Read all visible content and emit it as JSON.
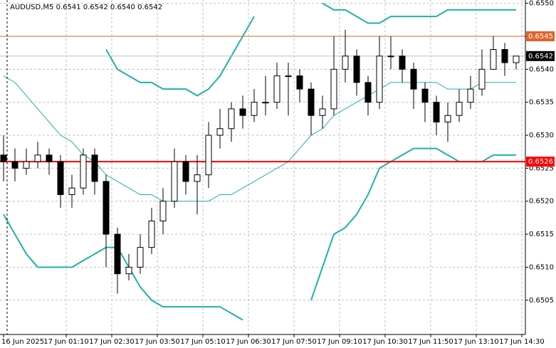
{
  "chart_data": {
    "type": "candlestick",
    "title": "AUDUSD,M5  0.6541 0.6542 0.6540 0.6542",
    "ylim": [
      0.64998,
      0.65505
    ],
    "yticks": [
      {
        "value": 0.6505,
        "label": "0.6505"
      },
      {
        "value": 0.651,
        "label": "0.6510"
      },
      {
        "value": 0.6515,
        "label": "0.6515"
      },
      {
        "value": 0.652,
        "label": "0.6520"
      },
      {
        "value": 0.6525,
        "label": "0.6525"
      },
      {
        "value": 0.653,
        "label": "0.6530"
      },
      {
        "value": 0.6535,
        "label": "0.6535"
      },
      {
        "value": 0.654,
        "label": "0.6540"
      },
      {
        "value": 0.6545,
        "label": "0.6545"
      },
      {
        "value": 0.655,
        "label": "0.6550"
      }
    ],
    "xticks": [
      {
        "value": 0,
        "label": "16 Jun 2025"
      },
      {
        "value": 5.5,
        "label": "17 Jun 01:10"
      },
      {
        "value": 9.5,
        "label": "17 Jun 02:30"
      },
      {
        "value": 13.5,
        "label": "17 Jun 03:50"
      },
      {
        "value": 17.5,
        "label": "17 Jun 05:10"
      },
      {
        "value": 21.5,
        "label": "17 Jun 06:30"
      },
      {
        "value": 25.5,
        "label": "17 Jun 07:50"
      },
      {
        "value": 29.5,
        "label": "17 Jun 09:10"
      },
      {
        "value": 33.5,
        "label": "17 Jun 10:30"
      },
      {
        "value": 37.5,
        "label": "17 Jun 11:50"
      },
      {
        "value": 41.5,
        "label": "17 Jun 13:10"
      },
      {
        "value": 45.5,
        "label": "17 Jun 14:30"
      }
    ],
    "grid": true,
    "open": [
      0.6527,
      0.6526,
      0.6525,
      0.6526,
      0.6527,
      0.6526,
      0.6521,
      0.6522,
      0.6527,
      0.6523,
      0.6515,
      0.6509,
      0.651,
      0.6513,
      0.6517,
      0.652,
      0.6526,
      0.6523,
      0.6524,
      0.653,
      0.6531,
      0.6534,
      0.6533,
      0.6535,
      0.6535,
      0.6539,
      0.6539,
      0.6537,
      0.6533,
      0.6534,
      0.654,
      0.6542,
      0.6538,
      0.6535,
      0.6542,
      0.6542,
      0.654,
      0.6537,
      0.6535,
      0.6532,
      0.6533,
      0.6535,
      0.6537,
      0.654,
      0.6543,
      0.6541
    ],
    "high": [
      0.653,
      0.6528,
      0.6528,
      0.6529,
      0.6528,
      0.6527,
      0.6524,
      0.6528,
      0.6528,
      0.6524,
      0.6516,
      0.6512,
      0.6515,
      0.6519,
      0.6522,
      0.6528,
      0.6527,
      0.6527,
      0.6532,
      0.6534,
      0.6535,
      0.6536,
      0.6537,
      0.6539,
      0.6541,
      0.6541,
      0.654,
      0.6538,
      0.6536,
      0.6545,
      0.6546,
      0.6543,
      0.6539,
      0.6545,
      0.6545,
      0.6543,
      0.6541,
      0.6538,
      0.6536,
      0.6535,
      0.6537,
      0.6539,
      0.6543,
      0.6545,
      0.6544,
      0.6542
    ],
    "low": [
      0.6523,
      0.6523,
      0.6524,
      0.6525,
      0.6524,
      0.6519,
      0.6519,
      0.6521,
      0.6521,
      0.651,
      0.6506,
      0.6508,
      0.6509,
      0.6512,
      0.6515,
      0.6519,
      0.6521,
      0.6518,
      0.6522,
      0.6528,
      0.6529,
      0.6531,
      0.6532,
      0.6533,
      0.6534,
      0.6533,
      0.6535,
      0.653,
      0.6531,
      0.6533,
      0.6538,
      0.6536,
      0.6533,
      0.6534,
      0.654,
      0.6538,
      0.6534,
      0.6532,
      0.653,
      0.6529,
      0.6532,
      0.6534,
      0.6536,
      0.654,
      0.6539,
      0.654
    ],
    "close": [
      0.6526,
      0.6525,
      0.6526,
      0.6527,
      0.6526,
      0.6521,
      0.6522,
      0.6527,
      0.6523,
      0.6515,
      0.6509,
      0.651,
      0.6513,
      0.6517,
      0.652,
      0.6526,
      0.6523,
      0.6524,
      0.653,
      0.6531,
      0.6534,
      0.6533,
      0.6535,
      0.6535,
      0.6539,
      0.6539,
      0.6537,
      0.6533,
      0.6534,
      0.654,
      0.6542,
      0.6538,
      0.6535,
      0.6542,
      0.6542,
      0.654,
      0.6537,
      0.6535,
      0.6532,
      0.6533,
      0.6535,
      0.6537,
      0.654,
      0.6543,
      0.6541,
      0.6542
    ],
    "bands": [
      {
        "color": "#20b2aa",
        "width": 2,
        "values": [
          null,
          null,
          null,
          null,
          null,
          null,
          null,
          null,
          null,
          0.6543,
          0.654,
          0.6539,
          0.6538,
          0.6538,
          0.6537,
          0.6537,
          0.6537,
          0.6536,
          0.6537,
          0.6539,
          0.6542,
          0.6545,
          0.6548,
          null,
          null,
          null,
          null,
          null,
          0.655,
          0.6549,
          0.6549,
          0.6548,
          0.6547,
          0.6547,
          0.6548,
          0.6548,
          0.6548,
          0.6548,
          0.6548,
          0.6549,
          0.6549,
          0.6549,
          0.6549,
          0.6549,
          0.6549,
          0.6549
        ]
      },
      {
        "color": "#20b2aa",
        "width": 1,
        "values": [
          0.6539,
          0.6538,
          0.6536,
          0.6534,
          0.6532,
          0.653,
          0.6529,
          0.6527,
          0.6526,
          0.6524,
          0.6523,
          0.6522,
          0.6521,
          0.6521,
          0.652,
          0.652,
          0.652,
          0.652,
          0.652,
          0.6521,
          0.6521,
          0.6522,
          0.6523,
          0.6524,
          0.6525,
          0.6526,
          0.6528,
          0.653,
          0.6531,
          0.6533,
          0.6534,
          0.6535,
          0.6536,
          0.6537,
          0.6538,
          0.6538,
          0.6538,
          0.6538,
          0.6538,
          0.6537,
          0.6537,
          0.6537,
          0.6538,
          0.6538,
          0.6538,
          0.6538
        ]
      },
      {
        "color": "#20b2aa",
        "width": 2,
        "values": [
          0.6518,
          0.6515,
          0.6512,
          0.651,
          0.651,
          0.651,
          0.651,
          0.6511,
          0.6512,
          0.6513,
          0.6513,
          0.651,
          0.6507,
          0.6505,
          0.6504,
          0.6504,
          0.6504,
          0.6504,
          0.6504,
          0.6504,
          0.6503,
          0.6502,
          null,
          null,
          null,
          null,
          null,
          0.6505,
          0.651,
          0.6515,
          0.6516,
          0.6518,
          0.6521,
          0.6525,
          0.6526,
          0.6527,
          0.6528,
          0.6528,
          0.6528,
          0.6527,
          0.6526,
          0.6526,
          0.6526,
          0.6527,
          0.6527,
          0.6527
        ]
      }
    ],
    "levels": [
      {
        "value": 0.6545,
        "label": "0.6545",
        "color": "#e0622a",
        "width": 1
      },
      {
        "value": 0.6526,
        "label": "0.6526",
        "color": "#ff0000",
        "width": 2
      }
    ],
    "current": {
      "value": 0.6542,
      "label": "0.6542",
      "color": "#000000"
    }
  }
}
